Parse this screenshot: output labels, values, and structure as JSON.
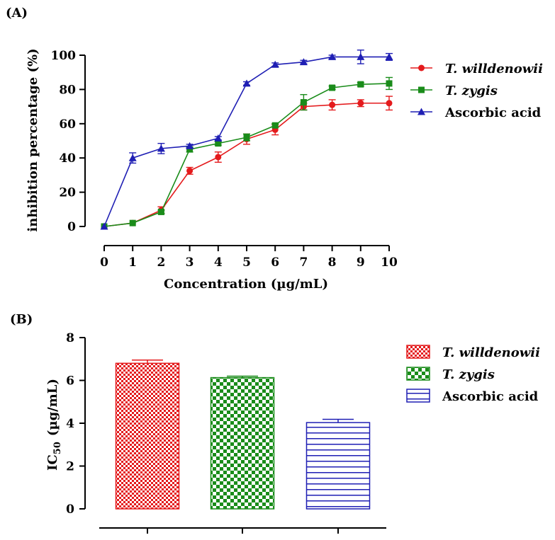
{
  "panels": {
    "a_label": "(A)",
    "b_label": "(B)"
  },
  "chart_data": [
    {
      "type": "line",
      "panel": "(A)",
      "xlabel": "Concentration (µg/mL)",
      "ylabel": "inhibition percentage (%)",
      "xlim": [
        0,
        10
      ],
      "ylim": [
        0,
        100
      ],
      "x": [
        0,
        1,
        2,
        3,
        4,
        5,
        6,
        7,
        8,
        9,
        10
      ],
      "xticks": [
        "0",
        "1",
        "2",
        "3",
        "4",
        "5",
        "6",
        "7",
        "8",
        "9",
        "10"
      ],
      "yticks": [
        "0",
        "20",
        "40",
        "60",
        "80",
        "100"
      ],
      "legend_position": "right",
      "series": [
        {
          "name": "T. willdenowii",
          "color": "#e41a1c",
          "marker": "circle",
          "values": [
            0,
            2,
            9.5,
            32.5,
            40.5,
            51,
            56.5,
            70,
            71,
            72,
            72
          ],
          "errors": [
            0,
            0,
            2,
            2,
            3,
            3,
            3,
            2,
            3,
            2,
            4
          ]
        },
        {
          "name": "T. zygis",
          "color": "#1a8c1a",
          "marker": "square",
          "values": [
            0,
            2,
            8.5,
            45,
            48.5,
            52,
            59,
            72.5,
            81,
            83,
            83.5
          ],
          "errors": [
            0,
            0,
            1,
            1.5,
            1,
            2,
            1,
            4.5,
            1,
            1,
            3.5
          ]
        },
        {
          "name": "Ascorbic acid",
          "color": "#1f1fb4",
          "marker": "triangle",
          "values": [
            0,
            40,
            45.5,
            47,
            51.5,
            83.5,
            94.5,
            96,
            99,
            99,
            99
          ],
          "errors": [
            0,
            3,
            3,
            1,
            1,
            1,
            1,
            1,
            1,
            4,
            2
          ]
        }
      ]
    },
    {
      "type": "bar",
      "panel": "(B)",
      "ylabel_main": "IC",
      "ylabel_sub": "50",
      "ylabel_unit": "(µg/mL)",
      "ylim": [
        0,
        8
      ],
      "yticks": [
        "0",
        "2",
        "4",
        "6",
        "8"
      ],
      "categories": [
        "T. willdenowii",
        "T. zygis",
        "Ascorbic acid"
      ],
      "values": [
        6.8,
        6.13,
        4.03
      ],
      "errors": [
        0.15,
        0.07,
        0.15
      ],
      "colors": [
        "#e41a1c",
        "#1a8c1a",
        "#1f1fb4"
      ],
      "patterns": [
        "fine-checker",
        "checker",
        "horizontal-lines"
      ],
      "legend_position": "right"
    }
  ]
}
